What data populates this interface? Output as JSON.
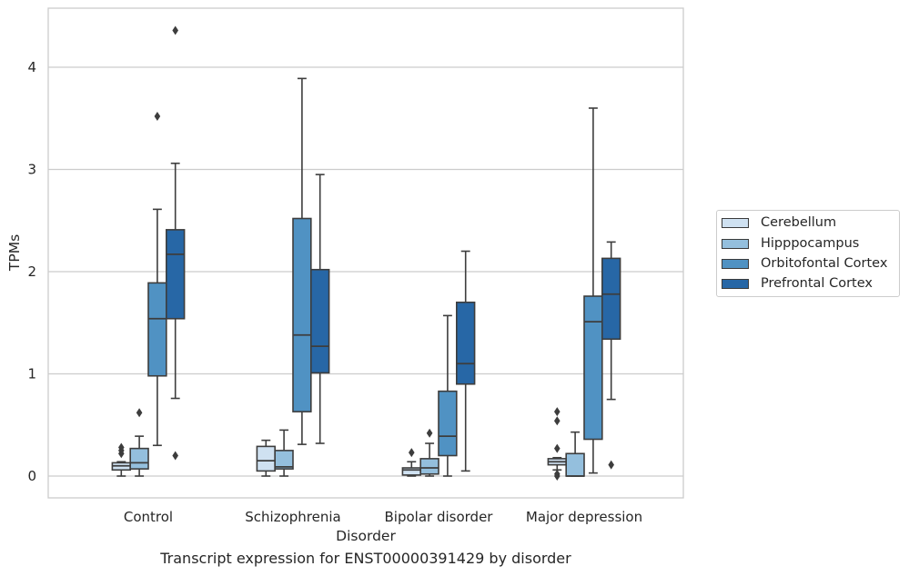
{
  "caption": "Transcript expression for ENST00000391429 by disorder",
  "chart_data": {
    "type": "box",
    "xlabel": "Disorder",
    "ylabel": "TPMs",
    "ylim": [
      -0.2,
      4.6
    ],
    "yticks": [
      0,
      1,
      2,
      3,
      4
    ],
    "grid": "horizontal",
    "legend_position": "right",
    "categories": [
      "Control",
      "Schizophrenia",
      "Bipolar disorder",
      "Major depression"
    ],
    "series": [
      {
        "name": "Cerebellum",
        "color": "#cfe1f1",
        "boxes": [
          {
            "whislo": 0.0,
            "q1": 0.06,
            "med": 0.1,
            "q3": 0.13,
            "whishi": 0.14,
            "fliers": [
              0.22,
              0.25,
              0.28
            ]
          },
          {
            "whislo": 0.0,
            "q1": 0.05,
            "med": 0.15,
            "q3": 0.29,
            "whishi": 0.35,
            "fliers": []
          },
          {
            "whislo": 0.0,
            "q1": 0.01,
            "med": 0.06,
            "q3": 0.08,
            "whishi": 0.14,
            "fliers": [
              0.23
            ]
          },
          {
            "whislo": 0.06,
            "q1": 0.11,
            "med": 0.14,
            "q3": 0.17,
            "whishi": 0.18,
            "fliers": [
              0.0,
              0.02,
              0.27,
              0.54,
              0.63
            ]
          }
        ]
      },
      {
        "name": "Hipppocampus",
        "color": "#94bfdd",
        "boxes": [
          {
            "whislo": 0.0,
            "q1": 0.07,
            "med": 0.13,
            "q3": 0.27,
            "whishi": 0.39,
            "fliers": [
              0.62
            ]
          },
          {
            "whislo": 0.0,
            "q1": 0.07,
            "med": 0.09,
            "q3": 0.25,
            "whishi": 0.45,
            "fliers": []
          },
          {
            "whislo": 0.0,
            "q1": 0.02,
            "med": 0.08,
            "q3": 0.17,
            "whishi": 0.32,
            "fliers": [
              0.42
            ]
          },
          {
            "whislo": 0.0,
            "q1": 0.0,
            "med": 0.0,
            "q3": 0.22,
            "whishi": 0.43,
            "fliers": []
          }
        ]
      },
      {
        "name": "Orbitofontal Cortex",
        "color": "#5092c3",
        "boxes": [
          {
            "whislo": 0.3,
            "q1": 0.98,
            "med": 1.54,
            "q3": 1.89,
            "whishi": 2.61,
            "fliers": [
              3.52
            ]
          },
          {
            "whislo": 0.31,
            "q1": 0.63,
            "med": 1.38,
            "q3": 2.52,
            "whishi": 3.89,
            "fliers": []
          },
          {
            "whislo": 0.0,
            "q1": 0.2,
            "med": 0.39,
            "q3": 0.83,
            "whishi": 1.57,
            "fliers": []
          },
          {
            "whislo": 0.03,
            "q1": 0.36,
            "med": 1.51,
            "q3": 1.76,
            "whishi": 3.6,
            "fliers": []
          }
        ]
      },
      {
        "name": "Prefrontal Cortex",
        "color": "#2767a6",
        "boxes": [
          {
            "whislo": 0.76,
            "q1": 1.54,
            "med": 2.17,
            "q3": 2.41,
            "whishi": 3.06,
            "fliers": [
              0.2,
              4.36
            ]
          },
          {
            "whislo": 0.32,
            "q1": 1.01,
            "med": 1.27,
            "q3": 2.02,
            "whishi": 2.95,
            "fliers": []
          },
          {
            "whislo": 0.05,
            "q1": 0.9,
            "med": 1.1,
            "q3": 1.7,
            "whishi": 2.2,
            "fliers": []
          },
          {
            "whislo": 0.75,
            "q1": 1.34,
            "med": 1.78,
            "q3": 2.13,
            "whishi": 2.29,
            "fliers": [
              0.11
            ]
          }
        ]
      }
    ]
  }
}
